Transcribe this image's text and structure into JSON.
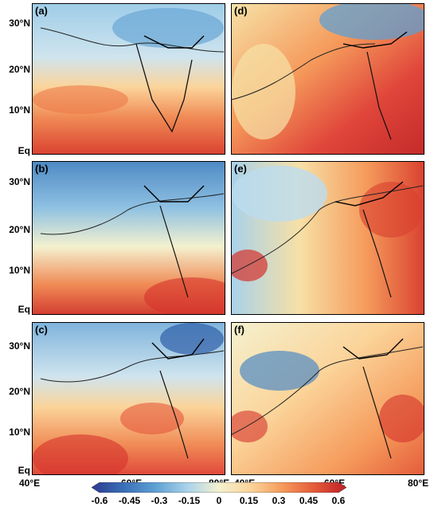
{
  "panels": [
    {
      "label": "(a)"
    },
    {
      "label": "(d)"
    },
    {
      "label": "(b)"
    },
    {
      "label": "(e)"
    },
    {
      "label": "(c)"
    },
    {
      "label": "(f)"
    }
  ],
  "yticks": [
    "30°N",
    "20°N",
    "10°N",
    "Eq"
  ],
  "xticks_left": [
    "40°E",
    "60°E",
    "80°E"
  ],
  "xticks_right": [
    "40°E",
    "60°E",
    "80°E"
  ],
  "colorbar": {
    "labels": [
      "-0.6",
      "-0.45",
      "-0.3",
      "-0.15",
      "0",
      "0.15",
      "0.3",
      "0.45",
      "0.6"
    ],
    "colors": [
      "#2b3a8f",
      "#3a6fb8",
      "#5fa0d4",
      "#a9d2ea",
      "#f4f1cf",
      "#fbd49a",
      "#f59a5b",
      "#e45a3a",
      "#bf1f26"
    ]
  }
}
